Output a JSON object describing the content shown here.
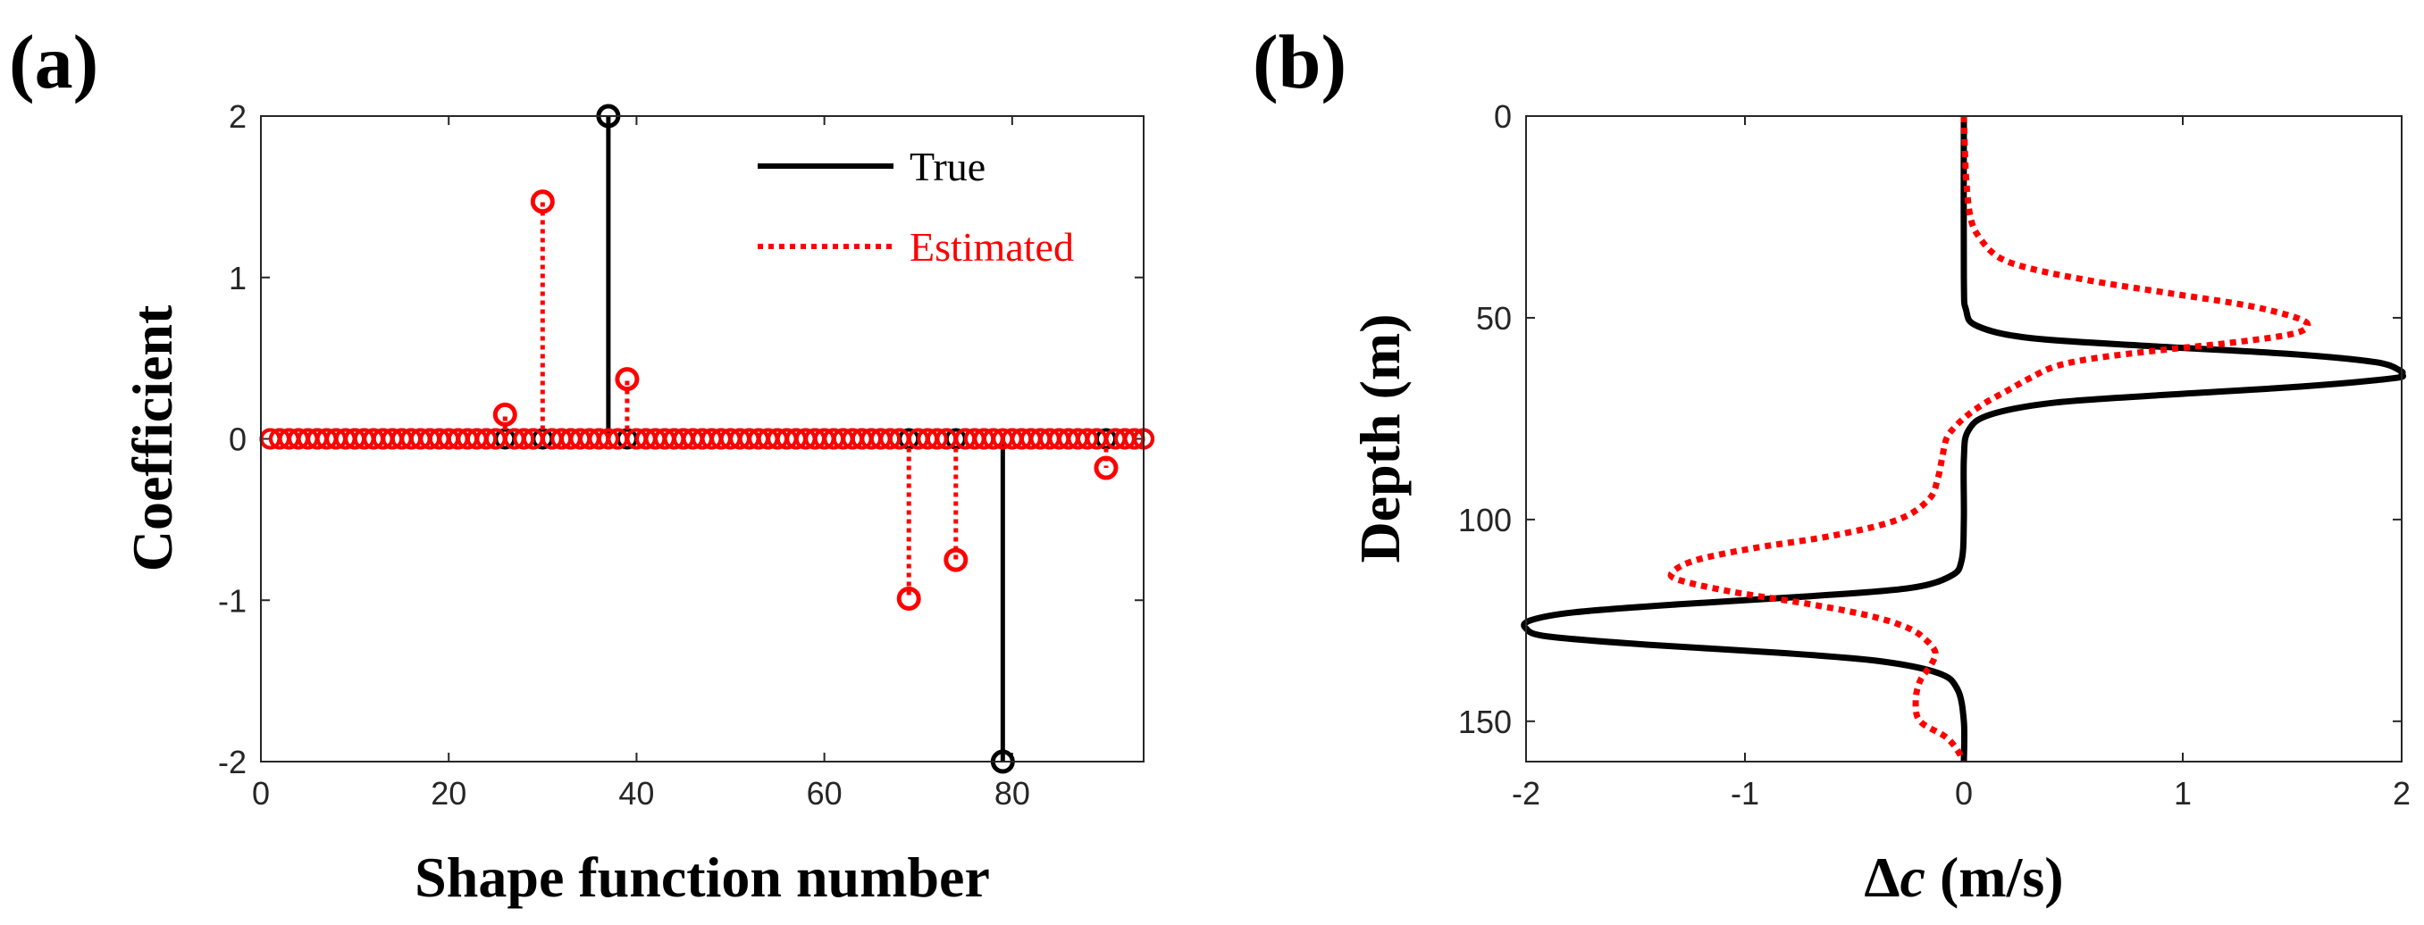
{
  "chart_data": [
    {
      "id": "a",
      "type": "stem",
      "panel_label": "(a)",
      "xlabel": "Shape function number",
      "ylabel": "Coefficient",
      "xlim": [
        0,
        94
      ],
      "ylim": [
        -2,
        2
      ],
      "xticks": [
        0,
        20,
        40,
        60,
        80
      ],
      "yticks": [
        -2,
        -1,
        0,
        1,
        2
      ],
      "legend": {
        "location": "top-right",
        "entries": [
          {
            "label": "True",
            "color": "#000000",
            "style": "solid"
          },
          {
            "label": "Estimated",
            "color": "#ff0000",
            "style": "dotted"
          }
        ]
      },
      "series": [
        {
          "name": "True",
          "color": "#000000",
          "x": [
            37,
            79
          ],
          "y": [
            2,
            -2
          ],
          "zero_marker_range": [
            1,
            94
          ]
        },
        {
          "name": "Estimated",
          "color": "#ff0000",
          "x": [
            26,
            30,
            39,
            69,
            74,
            90
          ],
          "y": [
            0.15,
            1.47,
            0.37,
            -0.99,
            -0.75,
            -0.18
          ],
          "zero_marker_range": [
            1,
            94
          ]
        }
      ]
    },
    {
      "id": "b",
      "type": "line",
      "panel_label": "(b)",
      "xlabel": "Δc (m/s)",
      "xlabel_symbol": "Δ",
      "xlabel_var": "c",
      "xlabel_unit": " (m/s)",
      "ylabel": "Depth (m)",
      "xlim": [
        -2,
        2
      ],
      "ylim": [
        0,
        160
      ],
      "y_reversed": true,
      "xticks": [
        -2,
        -1,
        0,
        1,
        2
      ],
      "yticks": [
        0,
        50,
        100,
        150
      ],
      "series": [
        {
          "name": "True",
          "color": "#000000",
          "style": "solid",
          "depth": [
            0,
            40,
            48,
            52,
            55,
            57,
            59,
            61,
            63,
            64,
            65,
            67,
            69,
            71,
            74,
            78,
            85,
            100,
            110,
            114,
            117,
            119,
            121,
            123,
            125,
            127,
            129,
            131,
            133,
            135,
            138,
            142,
            150,
            160
          ],
          "value": [
            0,
            0,
            0.01,
            0.06,
            0.3,
            0.85,
            1.5,
            1.88,
            1.99,
            2.0,
            1.96,
            1.55,
            0.95,
            0.42,
            0.12,
            0.02,
            0,
            0,
            -0.01,
            -0.06,
            -0.25,
            -0.7,
            -1.3,
            -1.78,
            -1.98,
            -2.0,
            -1.9,
            -1.45,
            -0.85,
            -0.4,
            -0.12,
            -0.03,
            0,
            0
          ]
        },
        {
          "name": "Estimated",
          "color": "#ff0000",
          "style": "dotted",
          "depth": [
            0,
            15,
            25,
            30,
            35,
            38,
            41,
            44,
            47,
            50,
            52,
            54,
            56,
            58,
            60,
            62,
            65,
            68,
            71,
            74,
            77,
            80,
            85,
            90,
            95,
            100,
            104,
            107,
            110,
            113,
            115,
            118,
            121,
            124,
            127,
            130,
            133,
            136,
            140,
            145,
            150,
            154,
            158,
            160
          ],
          "value": [
            0,
            0.01,
            0.03,
            0.07,
            0.16,
            0.32,
            0.6,
            0.95,
            1.3,
            1.52,
            1.57,
            1.5,
            1.25,
            0.9,
            0.6,
            0.42,
            0.3,
            0.2,
            0.1,
            0.02,
            -0.04,
            -0.08,
            -0.1,
            -0.12,
            -0.16,
            -0.3,
            -0.6,
            -0.95,
            -1.22,
            -1.33,
            -1.3,
            -1.05,
            -0.7,
            -0.42,
            -0.25,
            -0.17,
            -0.13,
            -0.15,
            -0.2,
            -0.22,
            -0.2,
            -0.08,
            -0.02,
            -0.01
          ]
        }
      ]
    }
  ]
}
